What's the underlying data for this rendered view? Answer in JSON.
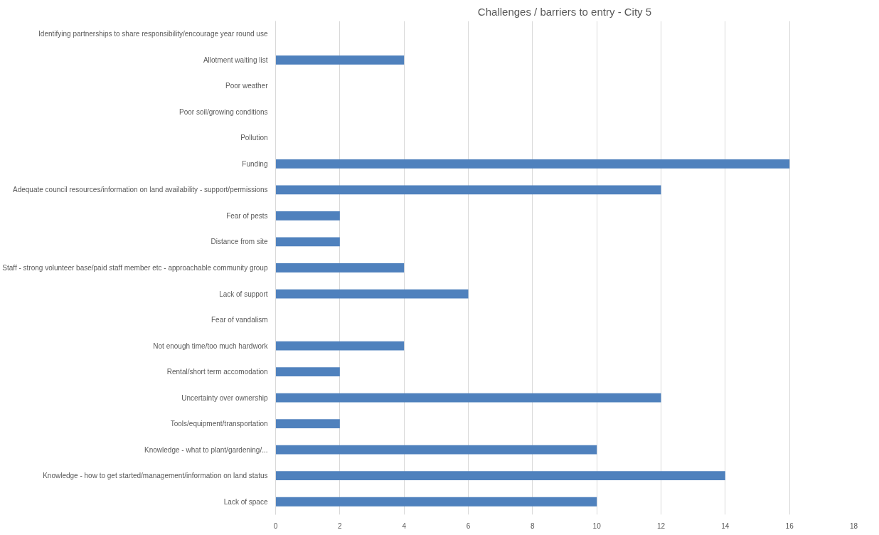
{
  "chart_data": {
    "type": "bar",
    "orientation": "horizontal",
    "title": "Challenges / barriers to entry - City 5",
    "categories": [
      "Identifying partnerships to share responsibility/encourage year round use",
      "Allotment waiting list",
      "Poor weather",
      "Poor soil/growing conditions",
      "Pollution",
      "Funding",
      "Adequate council resources/information on land availability - support/permissions",
      "Fear of pests",
      "Distance from site",
      "Staff - strong volunteer base/paid staff member etc - approachable community group",
      "Lack of support",
      "Fear of vandalism",
      "Not enough time/too much hardwork",
      "Rental/short term accomodation",
      "Uncertainty over ownership",
      "Tools/equipment/transportation",
      "Knowledge - what to plant/gardening/...",
      "Knowledge - how to get started/management/information on land status",
      "Lack of space"
    ],
    "values": [
      0,
      4,
      0,
      0,
      0,
      16,
      12,
      2,
      2,
      4,
      6,
      0,
      4,
      2,
      12,
      2,
      10,
      14,
      10
    ],
    "color": "#4f81bd",
    "xlim": [
      0,
      18
    ],
    "xticks": [
      0,
      2,
      4,
      6,
      8,
      10,
      12,
      14,
      16,
      18
    ],
    "grid": "x"
  }
}
